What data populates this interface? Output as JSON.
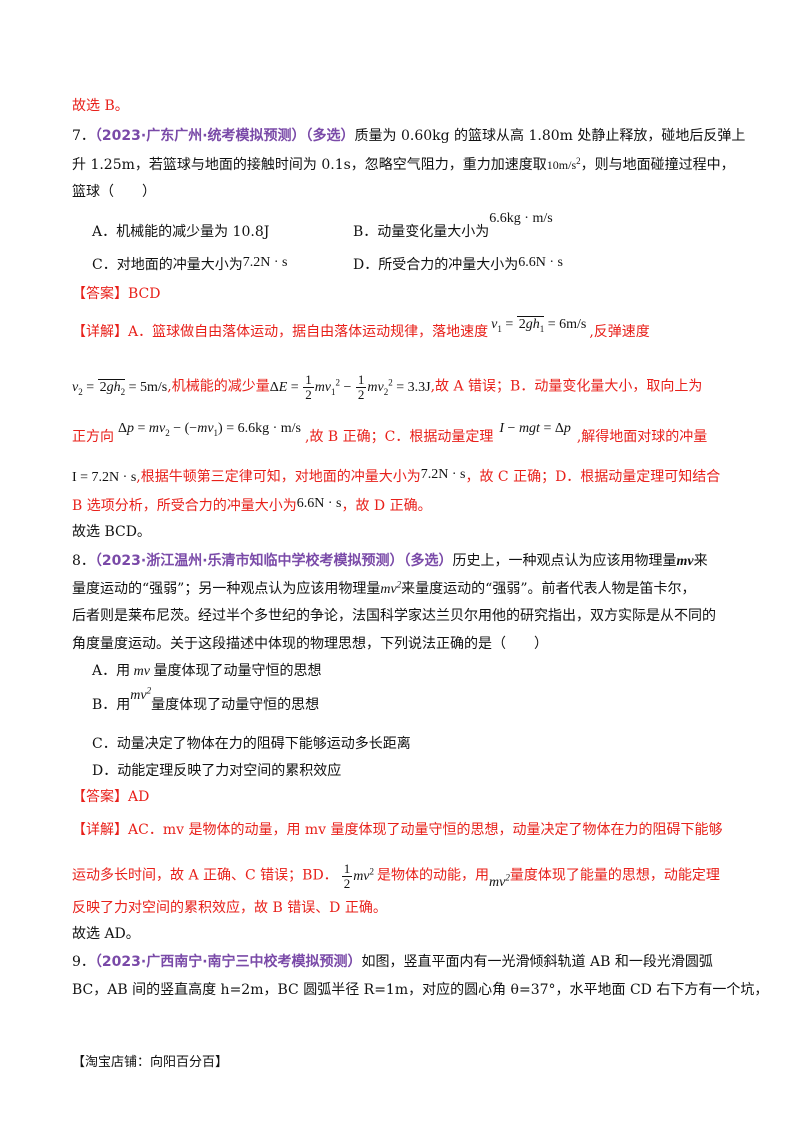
{
  "q6_tail": {
    "conclusion": "故选 B。"
  },
  "q7": {
    "number": "7．",
    "source": "（2023·广东广州·统考模拟预测）",
    "type": "（多选）",
    "stem_1": "质量为 0.60kg 的篮球从高 1.80m 处静止释放，碰地后反弹上",
    "stem_2a": "升 1.25m，若篮球与地面的接触时间为 0.1s，忽略空气阻力，重力加速度取",
    "g_value": "10m/s",
    "stem_2b": "，则与地面碰撞过程中，",
    "stem_3": "篮球（　　）",
    "options": {
      "A": "A．机械能的减少量为 10.8J",
      "B_text": "B．动量变化量大小为",
      "B_value": "6.6kg · m/s",
      "C_text": "C．对地面的冲量大小为",
      "C_value": "7.2N · s",
      "D_text": "D．所受合力的冲量大小为",
      "D_value": "6.6N · s"
    },
    "answer_label": "【答案】",
    "answer": "BCD",
    "detail_label": "【详解】",
    "detail_1a": "A．篮球做自由落体运动，据自由落体运动规律，落地速度",
    "detail_1b": ",反弹速度",
    "v1_formula": "= 6m/s",
    "v2_formula": "= 5m/s",
    "detail_2a": ",机械能的减少量",
    "dE_result": "= 3.3J",
    "detail_2b": ",故 A 错误；B．动量变化量大小，取向上为",
    "detail_3a": "正方向",
    "dp_formula": "= 6.6kg · m/s",
    "detail_3b": ",故 B 正确；C．根据动量定理",
    "detail_3c": ",解得地面对球的冲量",
    "I_value": "I = 7.2N · s",
    "detail_4a": ",根据牛顿第三定律可知，对地面的冲量大小为",
    "detail_4b": "，故 C 正确；D．根据动量定理可知结合",
    "detail_5a": "B 选项分析，所受合力的冲量大小为",
    "detail_5b": "，故 D 正确。",
    "conclusion": "故选 BCD。"
  },
  "q8": {
    "number": "8．",
    "source": "（2023·浙江温州·乐清市知临中学校考模拟预测）",
    "type": "（多选）",
    "stem_1a": "历史上，一种观点认为应该用物理量",
    "stem_1b": "来",
    "stem_2a": "量度运动的“强弱”；另一种观点认为应该用物理量",
    "stem_2b": "来量度运动的“强弱”。前者代表人物是笛卡尔，",
    "stem_3": "后者则是莱布尼茨。经过半个多世纪的争论，法国科学家达兰贝尔用他的研究指出，双方实际是从不同的",
    "stem_4": "角度量度运动。关于这段描述中体现的物理思想，下列说法正确的是（　　）",
    "optA_a": "A．用",
    "optA_b": "量度体现了动量守恒的思想",
    "optB_a": "B．用",
    "optB_b": "量度体现了动量守恒的思想",
    "optC": "C．动量决定了物体在力的阻碍下能够运动多长距离",
    "optD": "D．动能定理反映了力对空间的累积效应",
    "answer_label": "【答案】",
    "answer": "AD",
    "detail_label": "【详解】",
    "detail_1": "AC．mv 是物体的动量，用 mv 量度体现了动量守恒的思想，动量决定了物体在力的阻碍下能够",
    "detail_2a": "运动多长时间，故 A 正确、C 错误；BD．",
    "detail_2b": "是物体的动能，用",
    "detail_2c": "量度体现了能量的思想，动能定理",
    "detail_3": "反映了力对空间的累积效应，故 B 错误、D 正确。",
    "conclusion": "故选 AD。"
  },
  "q9": {
    "number": "9．",
    "source": "（2023·广西南宁·南宁三中校考模拟预测）",
    "stem_1": "如图，竖直平面内有一光滑倾斜轨道 AB 和一段光滑圆弧",
    "stem_2": "BC，AB 间的竖直高度 h=2m，BC 圆弧半径 R=1m，对应的圆心角 θ=37°，水平地面 CD 右下方有一个坑，"
  },
  "footer": "【淘宝店铺：向阳百分百】",
  "colors": {
    "red": "#e8201a",
    "purple": "#7a4aa8"
  }
}
